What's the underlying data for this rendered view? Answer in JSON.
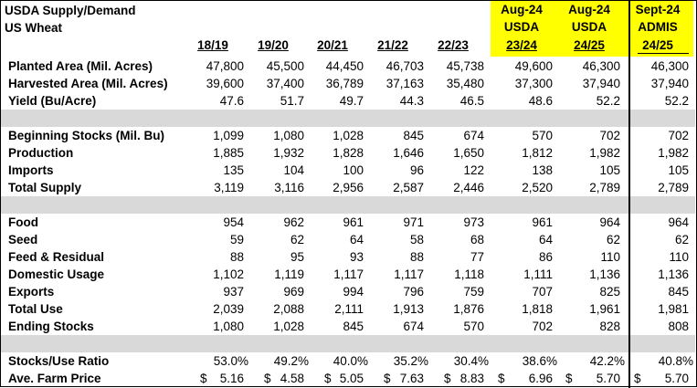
{
  "title_line1": "USDA Supply/Demand",
  "title_line2": "US Wheat",
  "columns": [
    {
      "top": "",
      "mid": "",
      "year": "18/19"
    },
    {
      "top": "",
      "mid": "",
      "year": "19/20"
    },
    {
      "top": "",
      "mid": "",
      "year": "20/21"
    },
    {
      "top": "",
      "mid": "",
      "year": "21/22"
    },
    {
      "top": "",
      "mid": "",
      "year": "22/23"
    },
    {
      "top": "Aug-24",
      "mid": "USDA",
      "year": "23/24"
    },
    {
      "top": "Aug-24",
      "mid": "USDA",
      "year": "24/25"
    },
    {
      "top": "Sept-24",
      "mid": "ADMIS",
      "year": "24/25"
    }
  ],
  "highlight_color": "#ffff00",
  "separator_color": "#d9d9d9",
  "rows": [
    {
      "label": "Planted Area (Mil. Acres)",
      "values": [
        "47,800",
        "45,500",
        "44,450",
        "46,703",
        "45,738",
        "49,600",
        "46,300",
        "46,300"
      ]
    },
    {
      "label": "Harvested Area (Mil. Acres)",
      "values": [
        "39,600",
        "37,400",
        "36,789",
        "37,163",
        "35,480",
        "37,300",
        "37,940",
        "37,940"
      ]
    },
    {
      "label": "Yield (Bu/Acre)",
      "values": [
        "47.6",
        "51.7",
        "49.7",
        "44.3",
        "46.5",
        "48.6",
        "52.2",
        "52.2"
      ]
    },
    {
      "separator": true
    },
    {
      "label": "Beginning Stocks (Mil. Bu)",
      "values": [
        "1,099",
        "1,080",
        "1,028",
        "845",
        "674",
        "570",
        "702",
        "702"
      ]
    },
    {
      "label": "Production",
      "values": [
        "1,885",
        "1,932",
        "1,828",
        "1,646",
        "1,650",
        "1,812",
        "1,982",
        "1,982"
      ]
    },
    {
      "label": "Imports",
      "values": [
        "135",
        "104",
        "100",
        "96",
        "122",
        "138",
        "105",
        "105"
      ]
    },
    {
      "label": "Total Supply",
      "values": [
        "3,119",
        "3,116",
        "2,956",
        "2,587",
        "2,446",
        "2,520",
        "2,789",
        "2,789"
      ]
    },
    {
      "separator": true
    },
    {
      "label": "Food",
      "values": [
        "954",
        "962",
        "961",
        "971",
        "973",
        "961",
        "964",
        "964"
      ]
    },
    {
      "label": "Seed",
      "values": [
        "59",
        "62",
        "64",
        "58",
        "68",
        "64",
        "62",
        "62"
      ]
    },
    {
      "label": "Feed & Residual",
      "values": [
        "88",
        "95",
        "93",
        "88",
        "77",
        "86",
        "110",
        "110"
      ]
    },
    {
      "label": "Domestic Usage",
      "values": [
        "1,102",
        "1,119",
        "1,117",
        "1,117",
        "1,118",
        "1,111",
        "1,136",
        "1,136"
      ]
    },
    {
      "label": "Exports",
      "values": [
        "937",
        "969",
        "994",
        "796",
        "759",
        "707",
        "825",
        "845"
      ]
    },
    {
      "label": "Total Use",
      "values": [
        "2,039",
        "2,088",
        "2,111",
        "1,913",
        "1,876",
        "1,818",
        "1,961",
        "1,981"
      ]
    },
    {
      "label": "Ending Stocks",
      "values": [
        "1,080",
        "1,028",
        "845",
        "674",
        "570",
        "702",
        "828",
        "808"
      ]
    },
    {
      "separator": true
    },
    {
      "label": "Stocks/Use Ratio",
      "values": [
        "53.0%",
        "49.2%",
        "40.0%",
        "35.2%",
        "30.4%",
        "38.6%",
        "42.2%",
        "40.8%"
      ]
    },
    {
      "label": "Ave. Farm Price",
      "currency": "$",
      "values": [
        "5.16",
        "4.58",
        "5.05",
        "7.63",
        "8.83",
        "6.96",
        "5.70",
        "5.70"
      ]
    }
  ]
}
